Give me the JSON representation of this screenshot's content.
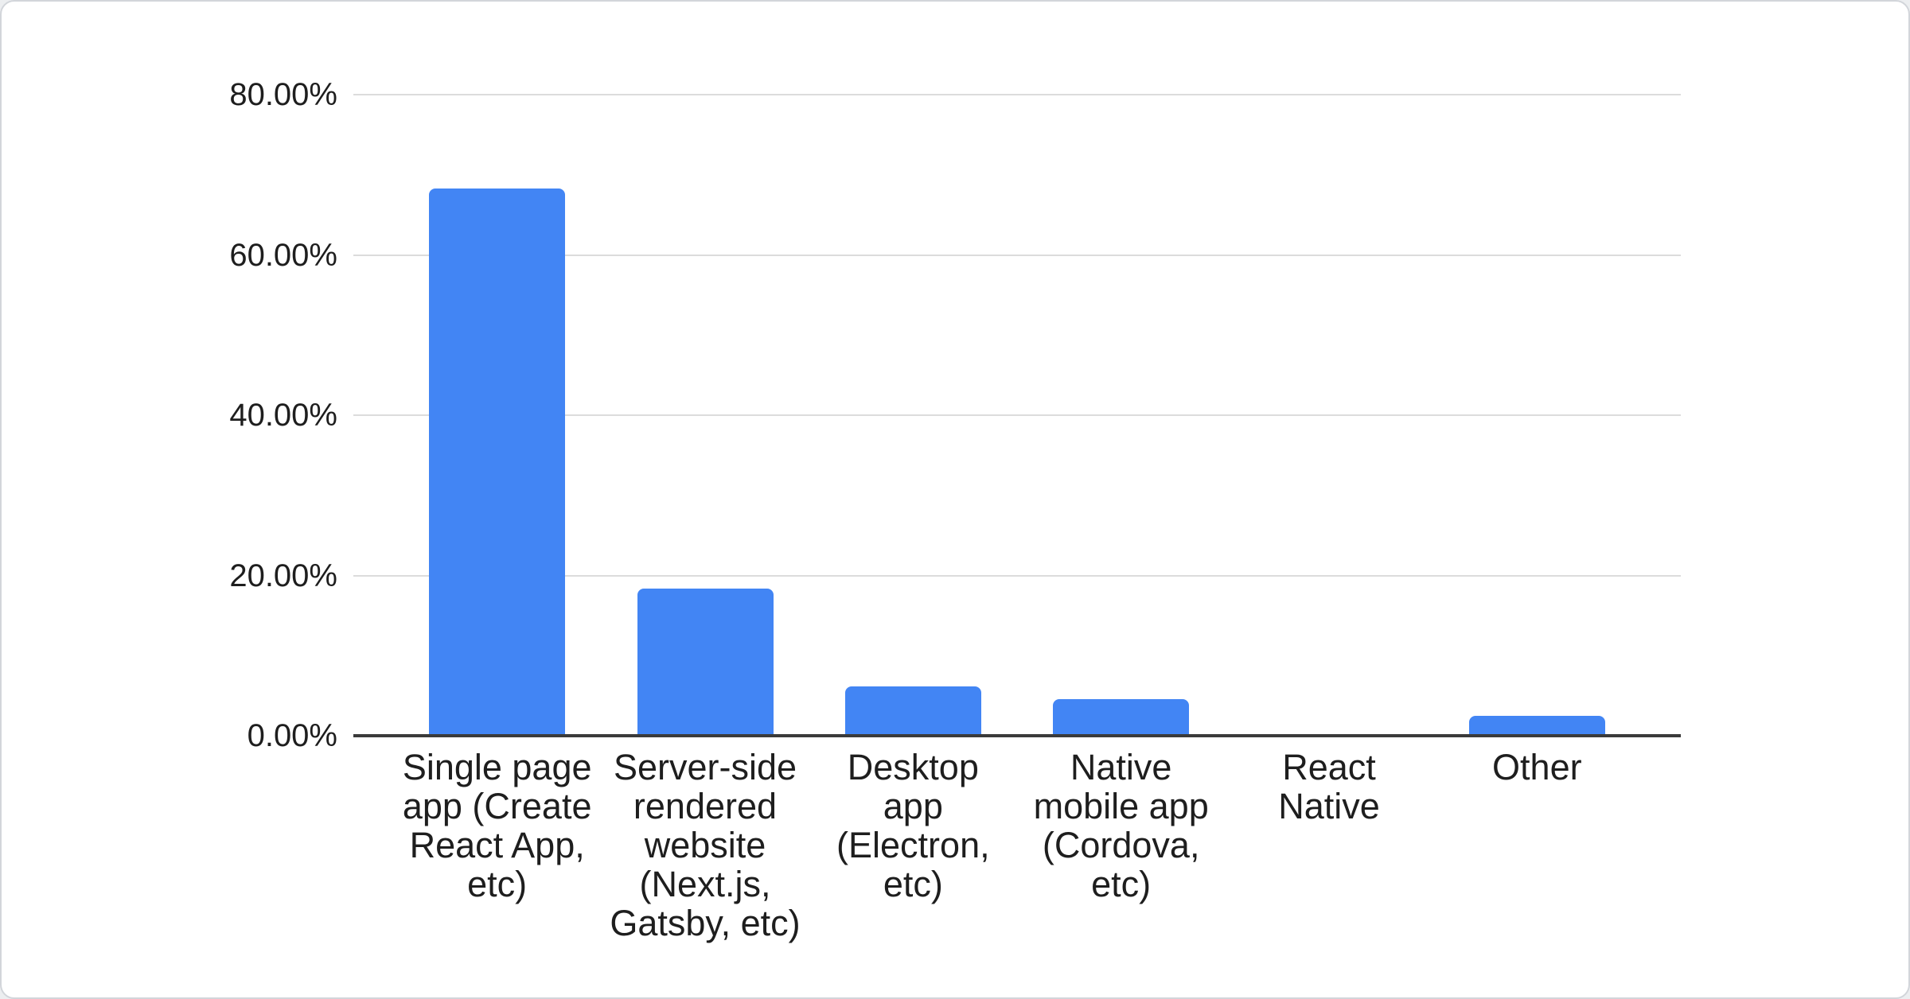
{
  "chart_data": {
    "type": "bar",
    "title": "",
    "xlabel": "",
    "ylabel": "",
    "categories": [
      "Single page app (Create React App, etc)",
      "Server-side rendered website (Next.js, Gatsby, etc)",
      "Desktop app (Electron, etc)",
      "Native mobile app (Cordova, etc)",
      "React Native",
      "Other"
    ],
    "category_label_lines": [
      [
        "Single page",
        "app (Create",
        "React App,",
        "etc)"
      ],
      [
        "Server-side",
        "rendered",
        "website",
        "(Next.js,",
        "Gatsby, etc)"
      ],
      [
        "Desktop",
        "app",
        "(Electron,",
        "etc)"
      ],
      [
        "Native",
        "mobile app",
        "(Cordova,",
        "etc)"
      ],
      [
        "React",
        "Native"
      ],
      [
        "Other"
      ]
    ],
    "values": [
      68.3,
      18.4,
      6.2,
      4.6,
      0,
      2.5
    ],
    "unit": "%",
    "ylim": [
      0,
      80
    ],
    "y_ticks": [
      {
        "value": 80,
        "label": "80.00%"
      },
      {
        "value": 60,
        "label": "60.00%"
      },
      {
        "value": 40,
        "label": "40.00%"
      },
      {
        "value": 20,
        "label": "20.00%"
      },
      {
        "value": 0,
        "label": "0.00%"
      }
    ],
    "grid": true,
    "legend": "none",
    "colors": {
      "bar": "#4285f4",
      "gridline": "#dcdcdc",
      "axis_line": "#3a3a3a",
      "text": "#1e1e1e"
    }
  },
  "card": {
    "background": "#ffffff",
    "border_color": "#d2d5da"
  }
}
